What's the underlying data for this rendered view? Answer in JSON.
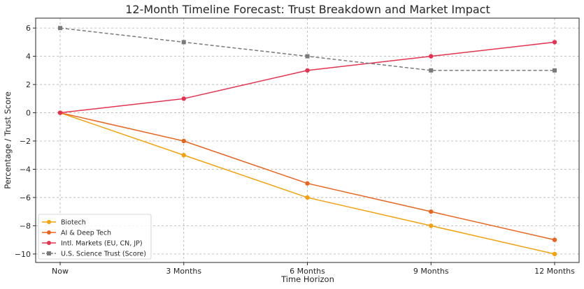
{
  "chart_data": {
    "type": "line",
    "title": "12-Month Timeline Forecast: Trust Breakdown and Market Impact",
    "xlabel": "Time Horizon",
    "ylabel": "Percentage / Trust Score",
    "categories": [
      "Now",
      "3 Months",
      "6 Months",
      "9 Months",
      "12 Months"
    ],
    "ylim": [
      -10.6,
      6.7
    ],
    "yticks": [
      6,
      4,
      2,
      0,
      -2,
      -4,
      -6,
      -8,
      -10
    ],
    "ytick_labels": [
      "6",
      "4",
      "2",
      "0",
      "−2",
      "−4",
      "−6",
      "−8",
      "−10"
    ],
    "grid": true,
    "legend_position": "bottom-left",
    "series": [
      {
        "name": "Biotech",
        "values": [
          0,
          -3,
          -6,
          -8,
          -10
        ],
        "color": "#f2a20c",
        "marker": "circle",
        "dash": false
      },
      {
        "name": "AI & Deep Tech",
        "values": [
          0,
          -2,
          -5,
          -7,
          -9
        ],
        "color": "#e8651f",
        "marker": "circle",
        "dash": false
      },
      {
        "name": "Intl. Markets (EU, CN, JP)",
        "values": [
          0,
          1,
          3,
          4,
          5
        ],
        "color": "#e3334f",
        "marker": "circle",
        "dash": false
      },
      {
        "name": "U.S. Science Trust (Score)",
        "values": [
          6,
          5,
          4,
          3,
          3
        ],
        "color": "#7a7a7a",
        "marker": "square",
        "dash": true
      }
    ]
  }
}
